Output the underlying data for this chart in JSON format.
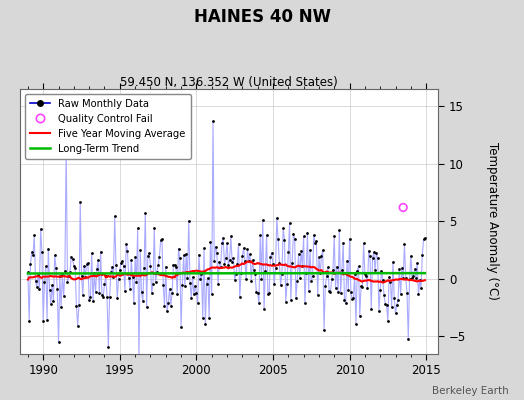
{
  "title": "HAINES 40 NW",
  "subtitle": "59.450 N, 136.352 W (United States)",
  "ylabel": "Temperature Anomaly (°C)",
  "watermark": "Berkeley Earth",
  "xlim": [
    1988.5,
    2015.8
  ],
  "ylim": [
    -6.5,
    16.5
  ],
  "yticks": [
    -5,
    0,
    5,
    10,
    15
  ],
  "xticks": [
    1990,
    1995,
    2000,
    2005,
    2010,
    2015
  ],
  "bg_color": "#d8d8d8",
  "plot_bg_color": "#ffffff",
  "raw_line_color": "#aaaaff",
  "dot_color": "#000000",
  "qc_color": "#ff44ff",
  "moving_avg_color": "#ff0000",
  "trend_color": "#00bb00",
  "legend_line_color": "#0000cc",
  "seed": 17
}
